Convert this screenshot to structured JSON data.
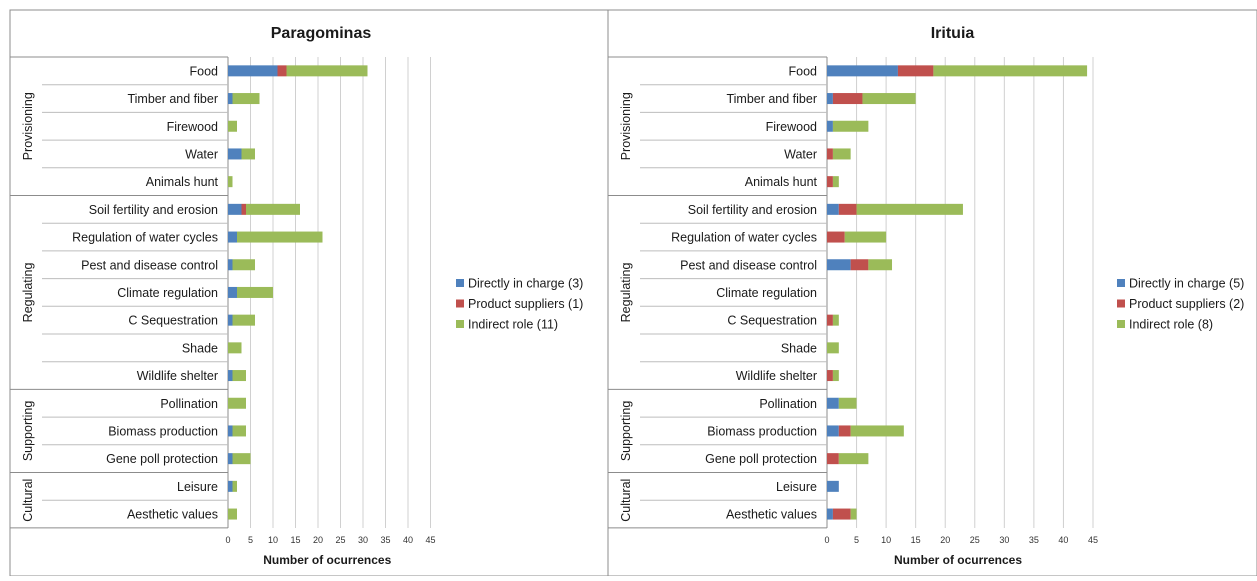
{
  "chart_data": [
    {
      "type": "bar",
      "orientation": "horizontal",
      "stacked": true,
      "title": "Paragominas",
      "xlabel": "Number of ocurrences",
      "xlim": [
        0,
        45
      ],
      "xticks": [
        "0",
        "5",
        "10",
        "15",
        "20",
        "25",
        "30",
        "35",
        "40",
        "45"
      ],
      "grid": true,
      "legend_position": "right",
      "groups": [
        {
          "name": "Provisioning",
          "categories": [
            "Food",
            "Timber and fiber",
            "Firewood",
            "Water",
            "Animals hunt"
          ]
        },
        {
          "name": "Regulating",
          "categories": [
            "Soil fertility and erosion",
            "Regulation of water cycles",
            "Pest and disease control",
            "Climate regulation",
            "C Sequestration",
            "Shade",
            "Wildlife shelter"
          ]
        },
        {
          "name": "Supporting",
          "categories": [
            "Pollination",
            "Biomass production",
            "Gene poll protection"
          ]
        },
        {
          "name": "Cultural",
          "categories": [
            "Leisure",
            "Aesthetic values"
          ]
        }
      ],
      "categories": [
        "Food",
        "Timber and fiber",
        "Firewood",
        "Water",
        "Animals hunt",
        "Soil fertility and erosion",
        "Regulation of water cycles",
        "Pest and disease control",
        "Climate regulation",
        "C Sequestration",
        "Shade",
        "Wildlife shelter",
        "Pollination",
        "Biomass production",
        "Gene poll protection",
        "Leisure",
        "Aesthetic values"
      ],
      "series": [
        {
          "name": "Directly in charge (3)",
          "color": "#4F81BD",
          "values": [
            11,
            1,
            0,
            3,
            0,
            3,
            2,
            1,
            2,
            1,
            0,
            1,
            0,
            1,
            1,
            1,
            0
          ]
        },
        {
          "name": "Product suppliers (1)",
          "color": "#C0504D",
          "values": [
            2,
            0,
            0,
            0,
            0,
            1,
            0,
            0,
            0,
            0,
            0,
            0,
            0,
            0,
            0,
            0,
            0
          ]
        },
        {
          "name": "Indirect role (11)",
          "color": "#9BBB59",
          "values": [
            18,
            6,
            2,
            3,
            1,
            12,
            19,
            5,
            8,
            5,
            3,
            3,
            4,
            3,
            4,
            1,
            2
          ]
        }
      ]
    },
    {
      "type": "bar",
      "orientation": "horizontal",
      "stacked": true,
      "title": "Irituia",
      "xlabel": "Number of ocurrences",
      "xlim": [
        0,
        45
      ],
      "xticks": [
        "0",
        "5",
        "10",
        "15",
        "20",
        "25",
        "30",
        "35",
        "40",
        "45"
      ],
      "grid": true,
      "legend_position": "right",
      "groups": [
        {
          "name": "Provisioning",
          "categories": [
            "Food",
            "Timber and fiber",
            "Firewood",
            "Water",
            "Animals hunt"
          ]
        },
        {
          "name": "Regulating",
          "categories": [
            "Soil fertility and erosion",
            "Regulation of water cycles",
            "Pest and disease control",
            "Climate regulation",
            "C Sequestration",
            "Shade",
            "Wildlife shelter"
          ]
        },
        {
          "name": "Supporting",
          "categories": [
            "Pollination",
            "Biomass production",
            "Gene poll protection"
          ]
        },
        {
          "name": "Cultural",
          "categories": [
            "Leisure",
            "Aesthetic values"
          ]
        }
      ],
      "categories": [
        "Food",
        "Timber and fiber",
        "Firewood",
        "Water",
        "Animals hunt",
        "Soil fertility and erosion",
        "Regulation of water cycles",
        "Pest and disease control",
        "Climate regulation",
        "C Sequestration",
        "Shade",
        "Wildlife shelter",
        "Pollination",
        "Biomass production",
        "Gene poll protection",
        "Leisure",
        "Aesthetic values"
      ],
      "series": [
        {
          "name": "Directly in charge (5)",
          "color": "#4F81BD",
          "values": [
            12,
            1,
            1,
            0,
            0,
            2,
            0,
            4,
            0,
            0,
            0,
            0,
            2,
            2,
            0,
            2,
            1
          ]
        },
        {
          "name": "Product suppliers (2)",
          "color": "#C0504D",
          "values": [
            6,
            5,
            0,
            1,
            1,
            3,
            3,
            3,
            0,
            1,
            0,
            1,
            0,
            2,
            2,
            0,
            3
          ]
        },
        {
          "name": "Indirect role (8)",
          "color": "#9BBB59",
          "values": [
            26,
            9,
            6,
            3,
            1,
            18,
            7,
            4,
            0,
            1,
            2,
            1,
            3,
            9,
            5,
            0,
            1
          ]
        }
      ]
    }
  ]
}
